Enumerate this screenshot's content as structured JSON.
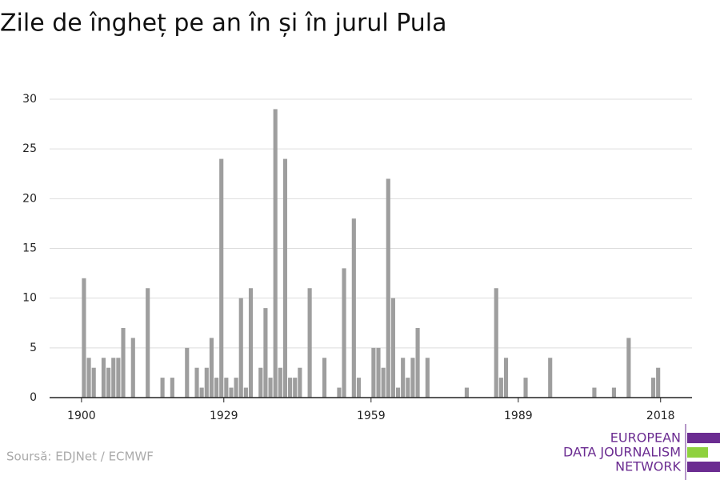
{
  "chart_data": {
    "type": "bar",
    "title": "Zile de îngheț pe an în și în jurul Pula",
    "source": "Soursă: EDJNet / ECMWF",
    "logo": [
      "EUROPEAN",
      "DATA JOURNALISM",
      "NETWORK"
    ],
    "color": "#9e9e9e",
    "x": [
      1900,
      1901,
      1902,
      1904,
      1905,
      1906,
      1907,
      1908,
      1910,
      1913,
      1916,
      1918,
      1921,
      1923,
      1924,
      1925,
      1926,
      1927,
      1928,
      1929,
      1930,
      1931,
      1932,
      1933,
      1934,
      1936,
      1937,
      1938,
      1939,
      1940,
      1941,
      1942,
      1943,
      1944,
      1946,
      1949,
      1952,
      1953,
      1955,
      1956,
      1959,
      1960,
      1961,
      1962,
      1963,
      1964,
      1965,
      1966,
      1967,
      1968,
      1970,
      1978,
      1984,
      1985,
      1986,
      1990,
      1995,
      2004,
      2008,
      2011,
      2016,
      2017
    ],
    "values": [
      12,
      4,
      3,
      4,
      3,
      4,
      4,
      7,
      6,
      11,
      2,
      2,
      5,
      3,
      1,
      3,
      6,
      2,
      24,
      2,
      1,
      2,
      10,
      1,
      11,
      3,
      9,
      2,
      29,
      3,
      24,
      2,
      2,
      3,
      11,
      4,
      1,
      13,
      18,
      2,
      5,
      5,
      3,
      22,
      10,
      1,
      4,
      2,
      4,
      7,
      4,
      1,
      11,
      2,
      4,
      2,
      4,
      1,
      1,
      6,
      2,
      3
    ],
    "xlim": [
      1893.5,
      2024.4
    ],
    "xticks": [
      1900,
      1929,
      1959,
      1989,
      2018
    ],
    "ylim": [
      0,
      30
    ],
    "yticks": [
      0,
      5,
      10,
      15,
      20,
      25,
      30
    ],
    "grid": true
  }
}
